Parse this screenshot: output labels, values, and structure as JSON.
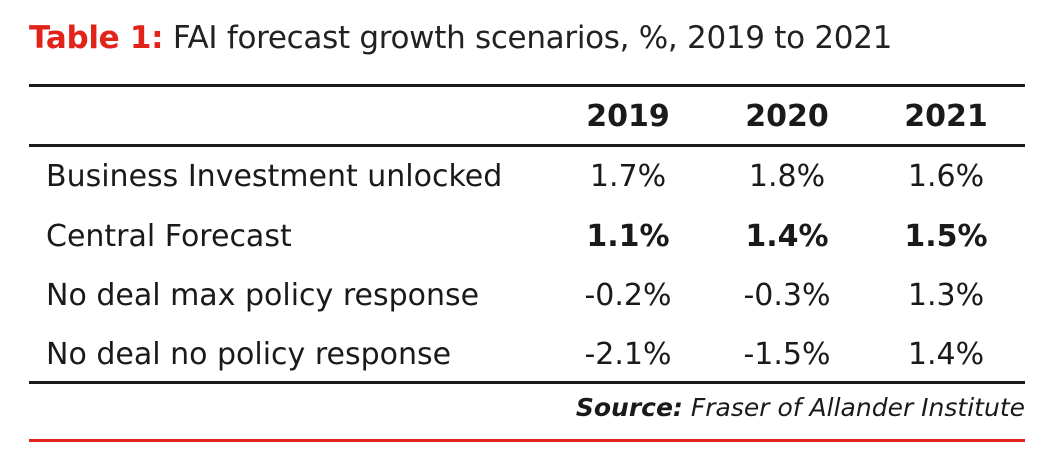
{
  "title": {
    "label": "Table 1:",
    "text": "FAI forecast growth scenarios, %, 2019 to 2021"
  },
  "table": {
    "columns": [
      "2019",
      "2020",
      "2021"
    ],
    "rows": [
      {
        "label": "Business Investment unlocked",
        "values": [
          "1.7%",
          "1.8%",
          "1.6%"
        ]
      },
      {
        "label": "Central Forecast",
        "values": [
          "1.1%",
          "1.4%",
          "1.5%"
        ]
      },
      {
        "label": "No deal max policy response",
        "values": [
          "-0.2%",
          "-0.3%",
          "1.3%"
        ]
      },
      {
        "label": "No deal no policy response",
        "values": [
          "-2.1%",
          "-1.5%",
          "1.4%"
        ]
      }
    ]
  },
  "source": {
    "label": "Source:",
    "text": "Fraser of Allander Institute"
  },
  "colors": {
    "accent": "#e2231a",
    "text": "#1a1a1a"
  }
}
